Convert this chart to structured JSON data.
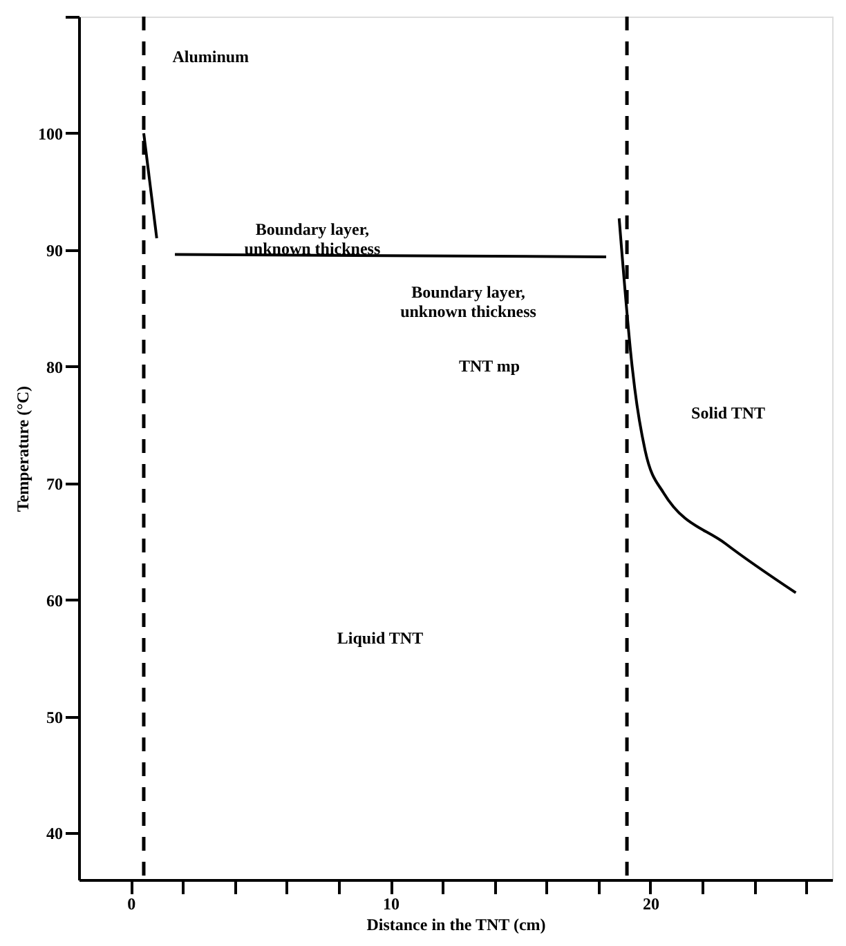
{
  "chart_data": {
    "type": "line",
    "xlabel": "Distance in the TNT (cm)",
    "ylabel": "Temperature (°C)",
    "series": [
      {
        "color": "#000000",
        "x": [
          0.5,
          1.0
        ],
        "values": [
          100,
          91
        ]
      },
      {
        "color": "#000000",
        "x": [
          1.7,
          18.3
        ],
        "values": [
          89.6,
          89.4
        ]
      },
      {
        "color": "#000000",
        "x": [
          18.8,
          19.3,
          19.4,
          19.8,
          20.5,
          22.9,
          25.6
        ],
        "values": [
          92.7,
          80,
          78.1,
          72.8,
          69.2,
          64.8,
          60.6
        ]
      }
    ],
    "xlim": [
      -2,
      27
    ],
    "ylim": [
      36,
      110
    ],
    "xticks": [
      0,
      {
        "value": 2,
        "label": null
      },
      {
        "value": 4,
        "label": null
      },
      {
        "value": 6,
        "label": null
      },
      {
        "value": 8,
        "label": null
      },
      10,
      {
        "value": 12,
        "label": null
      },
      {
        "value": 14,
        "label": null
      },
      {
        "value": 16,
        "label": null
      },
      {
        "value": 18,
        "label": null
      },
      20,
      {
        "value": 22,
        "label": null
      },
      {
        "value": 24,
        "label": null
      },
      {
        "value": 26,
        "label": null
      }
    ],
    "yticks": [
      40,
      50,
      60,
      70,
      80,
      90,
      100,
      {
        "value": 110,
        "label": null
      }
    ],
    "ref_lines": [
      {
        "axis": "x",
        "value": 0.5,
        "color": "#000000",
        "line_style": "dashed"
      },
      {
        "axis": "x",
        "value": 19.1,
        "color": "#000000",
        "line_style": "dashed"
      }
    ],
    "annotations": [
      "Aluminum",
      "Boundary layer,\nunknown thickness",
      "Boundary layer,\nunknown thickness",
      "TNT mp",
      "Solid TNT",
      "Liquid TNT"
    ],
    "grid": false,
    "legend": false,
    "marker": "none",
    "line_style": "solid"
  }
}
